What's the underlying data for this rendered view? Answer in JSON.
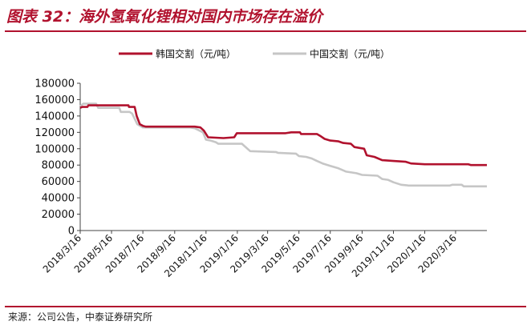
{
  "figure_title": "图表 32：海外氢氧化锂相对国内市场存在溢价",
  "source_note": "来源：公司公告，中泰证券研究所",
  "colors": {
    "accent": "#b1122e",
    "korea": "#b1122e",
    "china": "#c6c6c6",
    "axis": "#444444"
  },
  "chart_data": {
    "type": "line",
    "ylim": [
      0,
      180000
    ],
    "yticks": [
      0,
      20000,
      40000,
      60000,
      80000,
      100000,
      120000,
      140000,
      160000,
      180000
    ],
    "xlim": [
      "2018-03-16",
      "2020-05-16"
    ],
    "xticks": [
      "2018/3/16",
      "2018/5/16",
      "2018/7/16",
      "2018/9/16",
      "2018/11/16",
      "2019/1/16",
      "2019/3/16",
      "2019/5/16",
      "2019/7/16",
      "2019/9/16",
      "2019/11/16",
      "2020/1/16",
      "2020/3/16"
    ],
    "legend_position": "top",
    "series": [
      {
        "name": "韩国交割（元/吨）",
        "color": "#b1122e",
        "points": [
          [
            "2018-03-16",
            150000
          ],
          [
            "2018-03-20",
            151000
          ],
          [
            "2018-03-30",
            151000
          ],
          [
            "2018-04-01",
            153000
          ],
          [
            "2018-06-18",
            153000
          ],
          [
            "2018-06-19",
            151000
          ],
          [
            "2018-06-30",
            151000
          ],
          [
            "2018-07-04",
            140000
          ],
          [
            "2018-07-10",
            130000
          ],
          [
            "2018-07-16",
            128000
          ],
          [
            "2018-07-22",
            127000
          ],
          [
            "2018-10-25",
            127000
          ],
          [
            "2018-11-05",
            126000
          ],
          [
            "2018-11-12",
            122000
          ],
          [
            "2018-11-20",
            114000
          ],
          [
            "2018-12-20",
            113000
          ],
          [
            "2019-01-10",
            114000
          ],
          [
            "2019-01-15",
            119000
          ],
          [
            "2019-04-20",
            119000
          ],
          [
            "2019-05-01",
            120000
          ],
          [
            "2019-05-18",
            120000
          ],
          [
            "2019-05-20",
            118000
          ],
          [
            "2019-06-20",
            118000
          ],
          [
            "2019-06-28",
            115000
          ],
          [
            "2019-07-05",
            112000
          ],
          [
            "2019-07-16",
            110000
          ],
          [
            "2019-08-01",
            109000
          ],
          [
            "2019-08-10",
            107000
          ],
          [
            "2019-08-25",
            106000
          ],
          [
            "2019-09-01",
            102000
          ],
          [
            "2019-09-20",
            100000
          ],
          [
            "2019-09-25",
            92000
          ],
          [
            "2019-10-10",
            90000
          ],
          [
            "2019-10-25",
            86000
          ],
          [
            "2019-11-16",
            85000
          ],
          [
            "2019-12-10",
            84000
          ],
          [
            "2019-12-20",
            82000
          ],
          [
            "2020-01-16",
            81000
          ],
          [
            "2020-04-10",
            81000
          ],
          [
            "2020-04-15",
            80000
          ],
          [
            "2020-05-16",
            80000
          ]
        ]
      },
      {
        "name": "中国交割（元/吨）",
        "color": "#c6c6c6",
        "points": [
          [
            "2018-03-16",
            152000
          ],
          [
            "2018-03-22",
            155000
          ],
          [
            "2018-04-16",
            155000
          ],
          [
            "2018-04-20",
            150000
          ],
          [
            "2018-05-31",
            150000
          ],
          [
            "2018-06-03",
            145000
          ],
          [
            "2018-06-20",
            145000
          ],
          [
            "2018-06-25",
            143000
          ],
          [
            "2018-07-05",
            130000
          ],
          [
            "2018-07-16",
            126000
          ],
          [
            "2018-10-16",
            126000
          ],
          [
            "2018-10-25",
            125000
          ],
          [
            "2018-11-10",
            120000
          ],
          [
            "2018-11-16",
            111000
          ],
          [
            "2018-11-25",
            110000
          ],
          [
            "2018-12-05",
            108000
          ],
          [
            "2018-12-10",
            106000
          ],
          [
            "2019-01-25",
            106000
          ],
          [
            "2019-02-10",
            97000
          ],
          [
            "2019-04-01",
            96000
          ],
          [
            "2019-04-05",
            95000
          ],
          [
            "2019-05-10",
            94000
          ],
          [
            "2019-05-16",
            91000
          ],
          [
            "2019-05-30",
            90000
          ],
          [
            "2019-06-10",
            88000
          ],
          [
            "2019-06-20",
            85000
          ],
          [
            "2019-07-01",
            82000
          ],
          [
            "2019-07-16",
            79000
          ],
          [
            "2019-08-01",
            76000
          ],
          [
            "2019-08-16",
            72000
          ],
          [
            "2019-09-05",
            70000
          ],
          [
            "2019-09-16",
            68000
          ],
          [
            "2019-10-16",
            67000
          ],
          [
            "2019-10-25",
            63000
          ],
          [
            "2019-11-05",
            62000
          ],
          [
            "2019-11-16",
            59000
          ],
          [
            "2019-12-01",
            56000
          ],
          [
            "2019-12-16",
            55000
          ],
          [
            "2020-01-16",
            55000
          ],
          [
            "2020-03-05",
            55000
          ],
          [
            "2020-03-10",
            56000
          ],
          [
            "2020-03-28",
            56000
          ],
          [
            "2020-04-01",
            54000
          ],
          [
            "2020-05-16",
            54000
          ]
        ]
      }
    ]
  }
}
